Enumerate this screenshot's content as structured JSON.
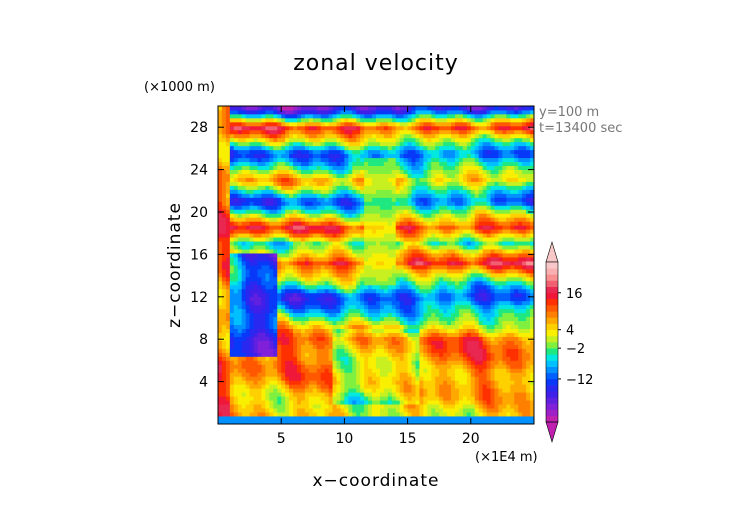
{
  "chart_data": {
    "type": "heatmap",
    "title": "zonal velocity",
    "xlabel": "x−coordinate",
    "ylabel": "z−coordinate",
    "x_unit": "(×1E4 m)",
    "y_unit": "(×1000 m)",
    "annotations": [
      "y=100 m",
      "t=13400 sec"
    ],
    "xlim": [
      0,
      25
    ],
    "ylim": [
      0,
      30
    ],
    "x_ticks": [
      5,
      10,
      15,
      20
    ],
    "y_ticks": [
      4,
      8,
      12,
      16,
      20,
      24,
      28
    ],
    "colorbar": {
      "min": -26,
      "max": 26,
      "step": 2,
      "tick_labels": [
        "16",
        "4",
        "−2",
        "−12"
      ],
      "tick_values": [
        16,
        4,
        -2,
        -12
      ],
      "colors": [
        "#c020b0",
        "#a020c8",
        "#8020d8",
        "#6020e0",
        "#4020e8",
        "#2828f0",
        "#0838f8",
        "#0060ff",
        "#0090ff",
        "#00c0ff",
        "#00e8e0",
        "#20e880",
        "#80f040",
        "#c8f020",
        "#f8f000",
        "#ffd000",
        "#ffa800",
        "#ff8000",
        "#ff5800",
        "#ff3000",
        "#f01838",
        "#e82850",
        "#f06070",
        "#f89090",
        "#f8b0b0",
        "#f8c8c8"
      ]
    },
    "grid": false
  }
}
